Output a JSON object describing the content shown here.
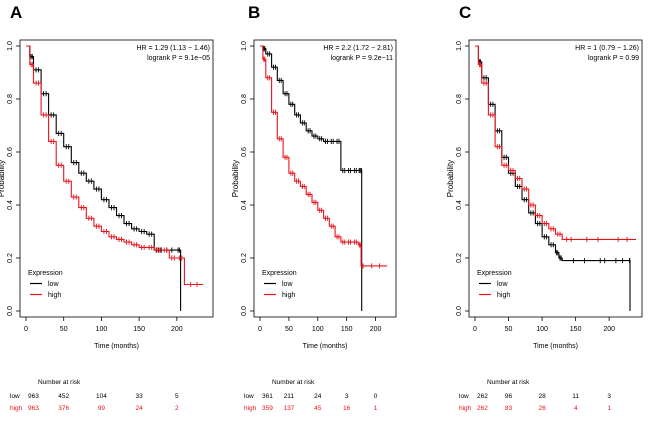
{
  "colors": {
    "low": "#000000",
    "high": "#e8141c",
    "axis": "#000000",
    "text": "#000000"
  },
  "chart_data": [
    {
      "panel_label": "A",
      "type": "line",
      "title": "",
      "xlabel": "Time (months)",
      "ylabel": "Probability",
      "xlim": [
        0,
        240
      ],
      "ylim": [
        0,
        1
      ],
      "xticks": [
        "0",
        "50",
        "100",
        "150",
        "200"
      ],
      "yticks": [
        "0.0",
        "0.2",
        "0.4",
        "0.6",
        "0.8",
        "1.0"
      ],
      "stats": [
        "HR = 1.29 (1.13 − 1.46)",
        "logrank P = 9.1e−05"
      ],
      "legend": {
        "title": "Expression",
        "entries": [
          "low",
          "high"
        ],
        "position": "bottom-left"
      },
      "series": [
        {
          "name": "low",
          "color": "#000000",
          "x": [
            0,
            5,
            10,
            20,
            30,
            40,
            50,
            60,
            70,
            80,
            90,
            100,
            110,
            120,
            130,
            140,
            150,
            160,
            170,
            178,
            180,
            200,
            205
          ],
          "y": [
            1.0,
            0.96,
            0.91,
            0.82,
            0.74,
            0.67,
            0.62,
            0.56,
            0.52,
            0.49,
            0.46,
            0.42,
            0.39,
            0.36,
            0.33,
            0.31,
            0.3,
            0.29,
            0.23,
            0.23,
            0.23,
            0.23,
            0.0
          ]
        },
        {
          "name": "high",
          "color": "#e8141c",
          "x": [
            0,
            5,
            10,
            20,
            30,
            40,
            50,
            60,
            70,
            80,
            90,
            100,
            110,
            120,
            130,
            140,
            150,
            160,
            170,
            180,
            190,
            200,
            210,
            235
          ],
          "y": [
            1.0,
            0.93,
            0.86,
            0.74,
            0.64,
            0.55,
            0.49,
            0.43,
            0.39,
            0.35,
            0.32,
            0.3,
            0.28,
            0.27,
            0.26,
            0.25,
            0.24,
            0.24,
            0.23,
            0.23,
            0.2,
            0.2,
            0.1,
            0.1
          ]
        }
      ],
      "risk_table": {
        "header": "Number at risk",
        "x": [
          0,
          50,
          100,
          150,
          200
        ],
        "rows": [
          {
            "label": "low",
            "values": [
              "963",
              "452",
              "104",
              "33",
              "5"
            ]
          },
          {
            "label": "high",
            "values": [
              "963",
              "376",
              "99",
              "24",
              "2"
            ]
          }
        ]
      }
    },
    {
      "panel_label": "B",
      "type": "line",
      "title": "",
      "xlabel": "Time (months)",
      "ylabel": "Probability",
      "xlim": [
        0,
        225
      ],
      "ylim": [
        0,
        1
      ],
      "xticks": [
        "0",
        "50",
        "100",
        "150",
        "200"
      ],
      "yticks": [
        "0.0",
        "0.2",
        "0.4",
        "0.6",
        "0.8",
        "1.0"
      ],
      "stats": [
        "HR = 2.2 (1.72 − 2.81)",
        "logrank P = 9.2e−11"
      ],
      "legend": {
        "title": "Expression",
        "entries": [
          "low",
          "high"
        ],
        "position": "bottom-left"
      },
      "series": [
        {
          "name": "low",
          "color": "#000000",
          "x": [
            0,
            5,
            10,
            20,
            30,
            40,
            50,
            60,
            70,
            80,
            90,
            100,
            110,
            120,
            130,
            140,
            150,
            160,
            170,
            175,
            176
          ],
          "y": [
            1.0,
            0.99,
            0.97,
            0.92,
            0.87,
            0.82,
            0.78,
            0.74,
            0.71,
            0.68,
            0.66,
            0.65,
            0.64,
            0.64,
            0.64,
            0.53,
            0.53,
            0.53,
            0.53,
            0.53,
            0.0
          ]
        },
        {
          "name": "high",
          "color": "#e8141c",
          "x": [
            0,
            5,
            10,
            20,
            30,
            40,
            50,
            60,
            70,
            80,
            90,
            100,
            110,
            120,
            130,
            140,
            150,
            160,
            170,
            175,
            180,
            220
          ],
          "y": [
            1.0,
            0.95,
            0.88,
            0.75,
            0.65,
            0.58,
            0.52,
            0.49,
            0.47,
            0.44,
            0.41,
            0.38,
            0.35,
            0.32,
            0.28,
            0.26,
            0.26,
            0.26,
            0.25,
            0.17,
            0.17,
            0.17
          ]
        }
      ],
      "risk_table": {
        "header": "Number at risk",
        "x": [
          0,
          50,
          100,
          150,
          200
        ],
        "rows": [
          {
            "label": "low",
            "values": [
              "361",
              "211",
              "24",
              "3",
              "0"
            ]
          },
          {
            "label": "high",
            "values": [
              "359",
              "137",
              "45",
              "16",
              "1"
            ]
          }
        ]
      }
    },
    {
      "panel_label": "C",
      "type": "line",
      "title": "",
      "xlabel": "Time (months)",
      "ylabel": "Probability",
      "xlim": [
        0,
        240
      ],
      "ylim": [
        0,
        1
      ],
      "xticks": [
        "0",
        "50",
        "100",
        "150",
        "200"
      ],
      "yticks": [
        "0.0",
        "0.2",
        "0.4",
        "0.6",
        "0.8",
        "1.0"
      ],
      "stats": [
        "HR = 1 (0.79 − 1.26)",
        "logrank P = 0.99"
      ],
      "legend": {
        "title": "Expression",
        "entries": [
          "low",
          "high"
        ],
        "position": "bottom-left"
      },
      "series": [
        {
          "name": "low",
          "color": "#000000",
          "x": [
            0,
            5,
            10,
            20,
            30,
            40,
            50,
            60,
            70,
            80,
            90,
            100,
            110,
            120,
            125,
            130,
            180,
            200,
            230,
            231
          ],
          "y": [
            1.0,
            0.94,
            0.88,
            0.78,
            0.68,
            0.58,
            0.52,
            0.47,
            0.42,
            0.37,
            0.33,
            0.28,
            0.25,
            0.22,
            0.2,
            0.19,
            0.19,
            0.19,
            0.19,
            0.0
          ]
        },
        {
          "name": "high",
          "color": "#e8141c",
          "x": [
            0,
            5,
            10,
            20,
            30,
            40,
            50,
            60,
            70,
            80,
            90,
            100,
            110,
            120,
            130,
            150,
            200,
            240
          ],
          "y": [
            1.0,
            0.93,
            0.86,
            0.74,
            0.62,
            0.55,
            0.53,
            0.5,
            0.46,
            0.4,
            0.36,
            0.33,
            0.31,
            0.29,
            0.27,
            0.27,
            0.27,
            0.27
          ]
        }
      ],
      "risk_table": {
        "header": "Number at risk",
        "x": [
          0,
          50,
          100,
          150,
          200
        ],
        "rows": [
          {
            "label": "low",
            "values": [
              "262",
              "96",
              "28",
              "11",
              "3"
            ]
          },
          {
            "label": "high",
            "values": [
              "262",
              "83",
              "26",
              "4",
              "1"
            ]
          }
        ]
      }
    }
  ]
}
